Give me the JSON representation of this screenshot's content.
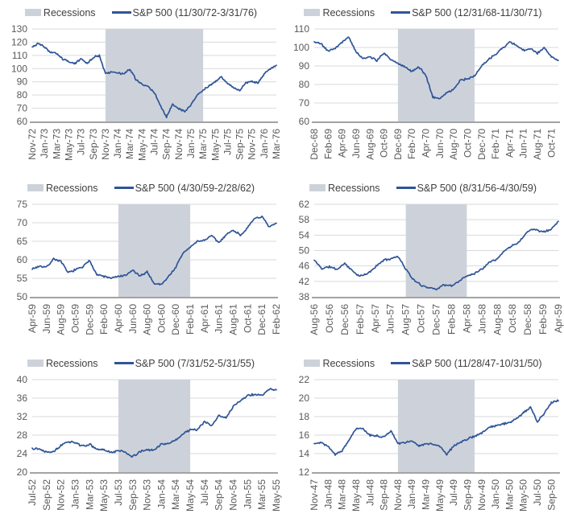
{
  "legend_recessions_label": "Recessions",
  "colors": {
    "line": "#2f5597",
    "band": "#cdd2da",
    "grid": "#d9d9d9",
    "axis": "#a3a3a3",
    "tick_text": "#58595b"
  },
  "chart_data": [
    {
      "type": "line",
      "series_label": "S&P 500 (11/30/72-3/31/76)",
      "y_min": 60,
      "y_max": 130,
      "y_ticks": [
        60,
        70,
        80,
        90,
        100,
        110,
        120,
        130
      ],
      "x_ticks": [
        "Nov-72",
        "Jan-73",
        "Mar-73",
        "May-73",
        "Jul-73",
        "Sep-73",
        "Nov-73",
        "Jan-74",
        "Mar-74",
        "May-74",
        "Jul-74",
        "Sep-74",
        "Nov-74",
        "Jan-75",
        "Mar-75",
        "May-75",
        "Jul-75",
        "Sep-75",
        "Nov-75",
        "Jan-76",
        "Mar-76"
      ],
      "recession_band": {
        "start_month": 12,
        "end_month": 28
      },
      "monthly_values": [
        116.5,
        119,
        116.5,
        112,
        111.5,
        107,
        105,
        104,
        107.5,
        104,
        108.5,
        110,
        96,
        97.5,
        96.5,
        96,
        99.5,
        91.5,
        88.5,
        86,
        82,
        72,
        63.5,
        73.5,
        69.5,
        67.5,
        72.5,
        80,
        83.5,
        87,
        90,
        94,
        88.5,
        85.5,
        83.5,
        89,
        90.5,
        89,
        96,
        100,
        102.5
      ],
      "seed": 3
    },
    {
      "type": "line",
      "series_label": "S&P 500 (12/31/68-11/30/71)",
      "y_min": 60,
      "y_max": 110,
      "y_ticks": [
        60,
        70,
        80,
        90,
        100,
        110
      ],
      "x_ticks": [
        "Dec-68",
        "Feb-69",
        "Apr-69",
        "Jun-69",
        "Aug-69",
        "Oct-69",
        "Dec-69",
        "Feb-70",
        "Apr-70",
        "Jun-70",
        "Aug-70",
        "Oct-70",
        "Dec-70",
        "Feb-71",
        "Apr-71",
        "Jun-71",
        "Aug-71",
        "Oct-71"
      ],
      "recession_band": {
        "start_month": 12,
        "end_month": 23
      },
      "monthly_values": [
        103,
        102,
        98,
        99.5,
        103,
        105.5,
        97.5,
        94,
        95,
        93,
        97,
        93.5,
        91.5,
        89.5,
        87,
        89.5,
        85,
        73,
        72.5,
        75.5,
        77.5,
        82.5,
        83,
        84.5,
        90,
        93.5,
        96.5,
        99.5,
        103,
        101,
        98.5,
        99,
        97,
        100,
        95,
        93
      ],
      "seed": 5
    },
    {
      "type": "line",
      "series_label": "S&P 500 (4/30/59-2/28/62)",
      "y_min": 50,
      "y_max": 75,
      "y_ticks": [
        50,
        55,
        60,
        65,
        70,
        75
      ],
      "x_ticks": [
        "Apr-59",
        "Jun-59",
        "Aug-59",
        "Oct-59",
        "Dec-59",
        "Feb-60",
        "Apr-60",
        "Jun-60",
        "Aug-60",
        "Oct-60",
        "Dec-60",
        "Feb-61",
        "Apr-61",
        "Jun-61",
        "Aug-61",
        "Oct-61",
        "Dec-61",
        "Feb-62"
      ],
      "recession_band": {
        "start_month": 12,
        "end_month": 22
      },
      "monthly_values": [
        57.5,
        58.3,
        58,
        60.3,
        59.5,
        56.5,
        57.3,
        58,
        59.8,
        56,
        55.5,
        55,
        55.5,
        55.7,
        57.2,
        55.5,
        56.8,
        53.5,
        53.4,
        55.5,
        58,
        61.8,
        63.4,
        65,
        65.3,
        66.5,
        64.6,
        66.8,
        68,
        66.7,
        68.6,
        71.3,
        71.6,
        68.8,
        69.9
      ],
      "seed": 7
    },
    {
      "type": "line",
      "series_label": "S&P 500 (8/31/56-4/30/59)",
      "y_min": 38,
      "y_max": 62,
      "y_ticks": [
        38,
        42,
        46,
        50,
        54,
        58,
        62
      ],
      "x_ticks": [
        "Aug-56",
        "Oct-56",
        "Dec-56",
        "Feb-57",
        "Apr-57",
        "Jun-57",
        "Aug-57",
        "Oct-57",
        "Dec-57",
        "Feb-58",
        "Apr-58",
        "Jun-58",
        "Aug-58",
        "Oct-58",
        "Dec-58",
        "Feb-59",
        "Apr-59"
      ],
      "recession_band": {
        "start_month": 12,
        "end_month": 20
      },
      "monthly_values": [
        47.5,
        45.3,
        45.8,
        45.1,
        46.7,
        44.7,
        43.3,
        44,
        45.7,
        47.4,
        47.9,
        48.5,
        45.2,
        42.4,
        41,
        40.4,
        40,
        41.1,
        40.8,
        42.1,
        43.4,
        44.1,
        45.2,
        47.2,
        47.8,
        50.1,
        51.3,
        52.5,
        55.2,
        55.5,
        54.8,
        55.4,
        57.6
      ],
      "seed": 11
    },
    {
      "type": "line",
      "series_label": "S&P 500 (7/31/52-5/31/55)",
      "y_min": 20,
      "y_max": 40,
      "y_ticks": [
        20,
        24,
        28,
        32,
        36,
        40
      ],
      "x_ticks": [
        "Jul-52",
        "Sep-52",
        "Nov-52",
        "Jan-53",
        "Mar-53",
        "May-53",
        "Jul-53",
        "Sep-53",
        "Nov-53",
        "Jan-54",
        "Mar-54",
        "May-54",
        "Jul-54",
        "Sep-54",
        "Nov-54",
        "Jan-55",
        "Mar-55",
        "May-55"
      ],
      "recession_band": {
        "start_month": 12,
        "end_month": 22
      },
      "monthly_values": [
        25.2,
        25,
        24.4,
        24.5,
        25.7,
        26.6,
        26.4,
        25.6,
        26,
        24.9,
        24.8,
        24.2,
        24.7,
        24.3,
        23.3,
        24.4,
        24.8,
        24.8,
        26.1,
        26.2,
        26.9,
        28.3,
        29.2,
        29.2,
        30.9,
        30.0,
        32.3,
        31.7,
        34.2,
        35.5,
        36.6,
        36.8,
        36.6,
        37.9,
        37.8
      ],
      "seed": 13
    },
    {
      "type": "line",
      "series_label": "S&P 500 (11/28/47-10/31/50)",
      "y_min": 12,
      "y_max": 22,
      "y_ticks": [
        12,
        14,
        16,
        18,
        20,
        22
      ],
      "x_ticks": [
        "Nov-47",
        "Jan-48",
        "Mar-48",
        "May-48",
        "Jul-48",
        "Sep-48",
        "Nov-48",
        "Jan-49",
        "Mar-49",
        "May-49",
        "Jul-49",
        "Sep-49",
        "Nov-49",
        "Jan-50",
        "Mar-50",
        "May-50",
        "Jul-50",
        "Sep-50"
      ],
      "recession_band": {
        "start_month": 12,
        "end_month": 23
      },
      "monthly_values": [
        15.1,
        15.2,
        14.8,
        13.9,
        14.3,
        15.5,
        16.7,
        16.7,
        16.0,
        15.9,
        15.8,
        16.5,
        15.1,
        15.2,
        15.4,
        14.8,
        15.1,
        15.0,
        14.8,
        13.9,
        14.8,
        15.2,
        15.6,
        15.9,
        16.2,
        16.8,
        17.0,
        17.2,
        17.3,
        17.8,
        18.4,
        19.0,
        17.4,
        18.4,
        19.5,
        19.7
      ],
      "seed": 17
    }
  ]
}
